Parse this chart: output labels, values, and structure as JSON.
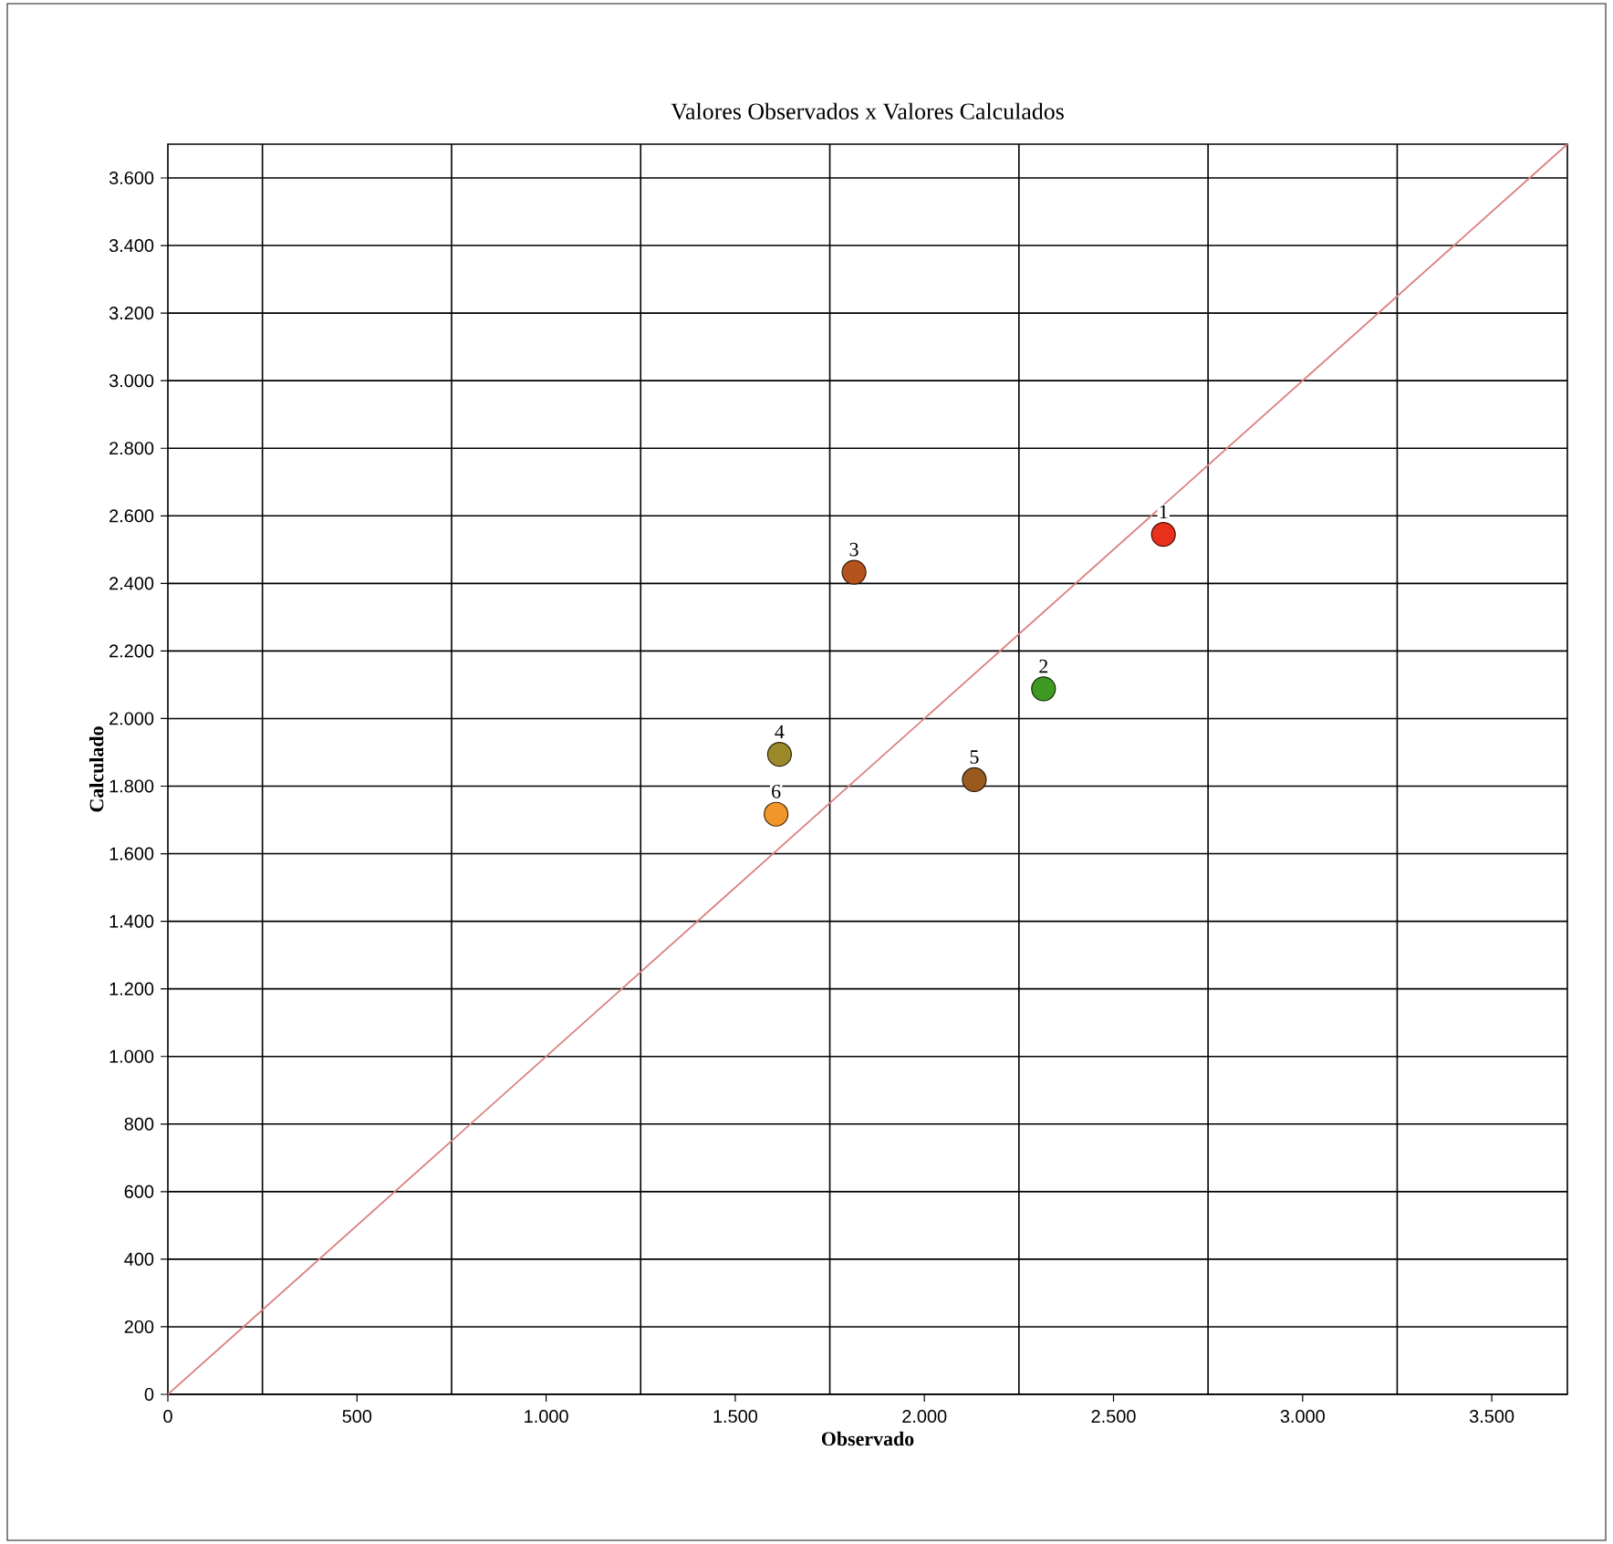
{
  "chart_data": {
    "type": "scatter",
    "title": "Valores Observados x Valores Calculados",
    "xlabel": "Observado",
    "ylabel": "Calculado",
    "xlim": [
      0,
      3700
    ],
    "ylim": [
      0,
      3700
    ],
    "xticks": [
      0,
      500,
      {
        "value": 1000,
        "label": "1.000"
      },
      {
        "value": 1500,
        "label": "1.500"
      },
      {
        "value": 2000,
        "label": "2.000"
      },
      {
        "value": 2500,
        "label": "2.500"
      },
      {
        "value": 3000,
        "label": "3.000"
      },
      {
        "value": 3500,
        "label": "3.500"
      },
      {
        "value": 250,
        "label": null
      },
      {
        "value": 750,
        "label": null
      },
      {
        "value": 1250,
        "label": null
      },
      {
        "value": 1750,
        "label": null
      },
      {
        "value": 2250,
        "label": null
      },
      {
        "value": 2750,
        "label": null
      },
      {
        "value": 3250,
        "label": null
      }
    ],
    "yticks": [
      0,
      200,
      400,
      600,
      800,
      {
        "value": 1000,
        "label": "1.000"
      },
      {
        "value": 1200,
        "label": "1.200"
      },
      {
        "value": 1400,
        "label": "1.400"
      },
      {
        "value": 1600,
        "label": "1.600"
      },
      {
        "value": 1800,
        "label": "1.800"
      },
      {
        "value": 2000,
        "label": "2.000"
      },
      {
        "value": 2200,
        "label": "2.200"
      },
      {
        "value": 2400,
        "label": "2.400"
      },
      {
        "value": 2600,
        "label": "2.600"
      },
      {
        "value": 2800,
        "label": "2.800"
      },
      {
        "value": 3000,
        "label": "3.000"
      },
      {
        "value": 3200,
        "label": "3.200"
      },
      {
        "value": 3400,
        "label": "3.400"
      },
      {
        "value": 3600,
        "label": "3.600"
      }
    ],
    "grid": true,
    "series": [
      {
        "marker": "circle",
        "x": [
          2632,
          2315,
          1814,
          1617,
          2132,
          1608
        ],
        "values": [
          2545,
          2088,
          2433,
          1894,
          1819,
          1717
        ],
        "colors": [
          "#e8301c",
          "#3f9a23",
          "#b5531c",
          "#9c8a2a",
          "#9a5a1e",
          "#f0962a"
        ]
      },
      {
        "type": "line",
        "marker": "none",
        "color": "#d98080",
        "x": [
          0,
          3700
        ],
        "values": [
          0,
          3700
        ]
      }
    ],
    "annotations": [
      {
        "text": "1",
        "x": 2632,
        "y": 2545
      },
      {
        "text": "2",
        "x": 2315,
        "y": 2088
      },
      {
        "text": "3",
        "x": 1814,
        "y": 2433
      },
      {
        "text": "4",
        "x": 1617,
        "y": 1894
      },
      {
        "text": "5",
        "x": 2132,
        "y": 1819
      },
      {
        "text": "6",
        "x": 1608,
        "y": 1717
      }
    ]
  }
}
